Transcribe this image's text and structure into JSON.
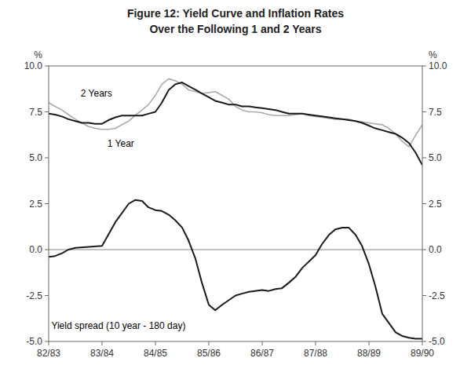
{
  "chart_data": {
    "type": "line",
    "title": "Figure 12: Yield Curve and Inflation Rates",
    "subtitle": "Over the Following 1 and 2 Years",
    "ylabel": "%",
    "y2label": "%",
    "xlim": [
      0,
      7
    ],
    "xticks": [
      {
        "value": 0,
        "label": "82/83"
      },
      {
        "value": 1,
        "label": "83/84"
      },
      {
        "value": 2,
        "label": "84/85"
      },
      {
        "value": 3,
        "label": "85/86"
      },
      {
        "value": 4,
        "label": "86/87"
      },
      {
        "value": 5,
        "label": "87/88"
      },
      {
        "value": 6,
        "label": "88/89"
      },
      {
        "value": 7,
        "label": "89/90"
      }
    ],
    "ylim": [
      -5.0,
      10.0
    ],
    "yticks": [
      {
        "value": -5.0,
        "label": "-5.0"
      },
      -2.5,
      {
        "value": 0.0,
        "label": "0.0"
      },
      2.5,
      {
        "value": 5.0,
        "label": "5.0"
      },
      7.5,
      {
        "value": 10.0,
        "label": "10.0"
      }
    ],
    "y2lim": [
      -5.0,
      10.0
    ],
    "y2ticks": [
      {
        "value": -5.0,
        "label": "-5.0"
      },
      -2.5,
      {
        "value": 0.0,
        "label": "0.0"
      },
      2.5,
      {
        "value": 5.0,
        "label": "5.0"
      },
      7.5,
      {
        "value": 10.0,
        "label": "10.0"
      }
    ],
    "grid": false,
    "series": [
      {
        "color": "#aaaaaa",
        "x": [
          0.0,
          0.12,
          0.25,
          0.37,
          0.5,
          0.62,
          0.75,
          0.87,
          1.0,
          1.12,
          1.25,
          1.37,
          1.5,
          1.62,
          1.75,
          1.87,
          2.0,
          2.12,
          2.25,
          2.37,
          2.5,
          2.62,
          2.75,
          2.87,
          3.0,
          3.12,
          3.25,
          3.37,
          3.5,
          3.62,
          3.75,
          3.87,
          4.0,
          4.12,
          4.25,
          4.37,
          4.5,
          4.62,
          4.75,
          4.87,
          5.0,
          5.12,
          5.25,
          5.37,
          5.5,
          5.62,
          5.75,
          5.87,
          6.0,
          6.12,
          6.25,
          6.37,
          6.5,
          6.62,
          6.75,
          6.87,
          7.0
        ],
        "values": [
          8.0,
          7.8,
          7.6,
          7.35,
          7.1,
          6.9,
          6.7,
          6.6,
          6.55,
          6.55,
          6.6,
          6.8,
          7.0,
          7.3,
          7.6,
          7.9,
          8.4,
          9.0,
          9.3,
          9.2,
          9.0,
          8.7,
          8.6,
          8.5,
          8.55,
          8.6,
          8.4,
          8.2,
          7.8,
          7.6,
          7.5,
          7.5,
          7.45,
          7.35,
          7.3,
          7.3,
          7.3,
          7.35,
          7.4,
          7.3,
          7.25,
          7.2,
          7.15,
          7.1,
          7.1,
          7.1,
          7.0,
          6.95,
          6.9,
          6.85,
          6.8,
          6.6,
          6.3,
          5.9,
          5.6,
          6.2,
          6.8
        ]
      },
      {
        "color": "#1a1a1a",
        "x": [
          0.0,
          0.12,
          0.25,
          0.37,
          0.5,
          0.62,
          0.75,
          0.87,
          1.0,
          1.12,
          1.25,
          1.37,
          1.5,
          1.62,
          1.75,
          1.87,
          2.0,
          2.12,
          2.25,
          2.37,
          2.5,
          2.62,
          2.75,
          2.87,
          3.0,
          3.12,
          3.25,
          3.37,
          3.5,
          3.62,
          3.75,
          3.87,
          4.0,
          4.12,
          4.25,
          4.37,
          4.5,
          4.62,
          4.75,
          4.87,
          5.0,
          5.12,
          5.25,
          5.37,
          5.5,
          5.62,
          5.75,
          5.87,
          6.0,
          6.12,
          6.25,
          6.37,
          6.5,
          6.62,
          6.75,
          6.87,
          7.0
        ],
        "values": [
          7.4,
          7.35,
          7.25,
          7.1,
          7.0,
          6.9,
          6.9,
          6.85,
          6.85,
          7.05,
          7.2,
          7.3,
          7.3,
          7.3,
          7.3,
          7.4,
          7.5,
          8.0,
          8.7,
          9.0,
          9.1,
          8.9,
          8.7,
          8.5,
          8.3,
          8.1,
          8.0,
          7.9,
          7.9,
          7.8,
          7.8,
          7.75,
          7.7,
          7.65,
          7.6,
          7.5,
          7.4,
          7.4,
          7.4,
          7.35,
          7.3,
          7.25,
          7.2,
          7.15,
          7.1,
          7.05,
          7.0,
          6.9,
          6.75,
          6.6,
          6.5,
          6.4,
          6.3,
          6.1,
          5.8,
          5.3,
          4.6
        ]
      },
      {
        "color": "#1a1a1a",
        "x": [
          0.0,
          0.12,
          0.25,
          0.37,
          0.5,
          0.75,
          1.0,
          1.25,
          1.5,
          1.62,
          1.75,
          1.87,
          2.0,
          2.12,
          2.25,
          2.37,
          2.5,
          2.62,
          2.75,
          2.87,
          3.0,
          3.12,
          3.25,
          3.5,
          3.62,
          3.75,
          4.0,
          4.12,
          4.25,
          4.37,
          4.5,
          4.62,
          4.75,
          5.0,
          5.12,
          5.25,
          5.37,
          5.5,
          5.62,
          5.75,
          5.87,
          6.0,
          6.12,
          6.25,
          6.5,
          6.62,
          6.75,
          6.87,
          7.0
        ],
        "values": [
          -0.4,
          -0.35,
          -0.2,
          0.0,
          0.1,
          0.15,
          0.2,
          1.5,
          2.5,
          2.7,
          2.65,
          2.3,
          2.15,
          2.1,
          1.9,
          1.6,
          1.2,
          0.5,
          -0.5,
          -1.8,
          -3.0,
          -3.3,
          -3.0,
          -2.5,
          -2.4,
          -2.3,
          -2.2,
          -2.25,
          -2.15,
          -2.1,
          -1.8,
          -1.5,
          -1.0,
          -0.3,
          0.3,
          0.8,
          1.1,
          1.2,
          1.2,
          0.8,
          0.2,
          -0.8,
          -2.0,
          -3.5,
          -4.5,
          -4.7,
          -4.8,
          -4.85,
          -4.85
        ]
      }
    ],
    "reference_lines": [
      {
        "y": 0,
        "color": "#888888"
      }
    ],
    "annotations": [
      {
        "text": "2 Years",
        "x": 0.6,
        "y": 8.35
      },
      {
        "text": "1 Year",
        "x": 1.1,
        "y": 5.6
      },
      {
        "text": "Yield spread (10 year - 180 day)",
        "x": 0.05,
        "y": -4.3
      }
    ]
  }
}
